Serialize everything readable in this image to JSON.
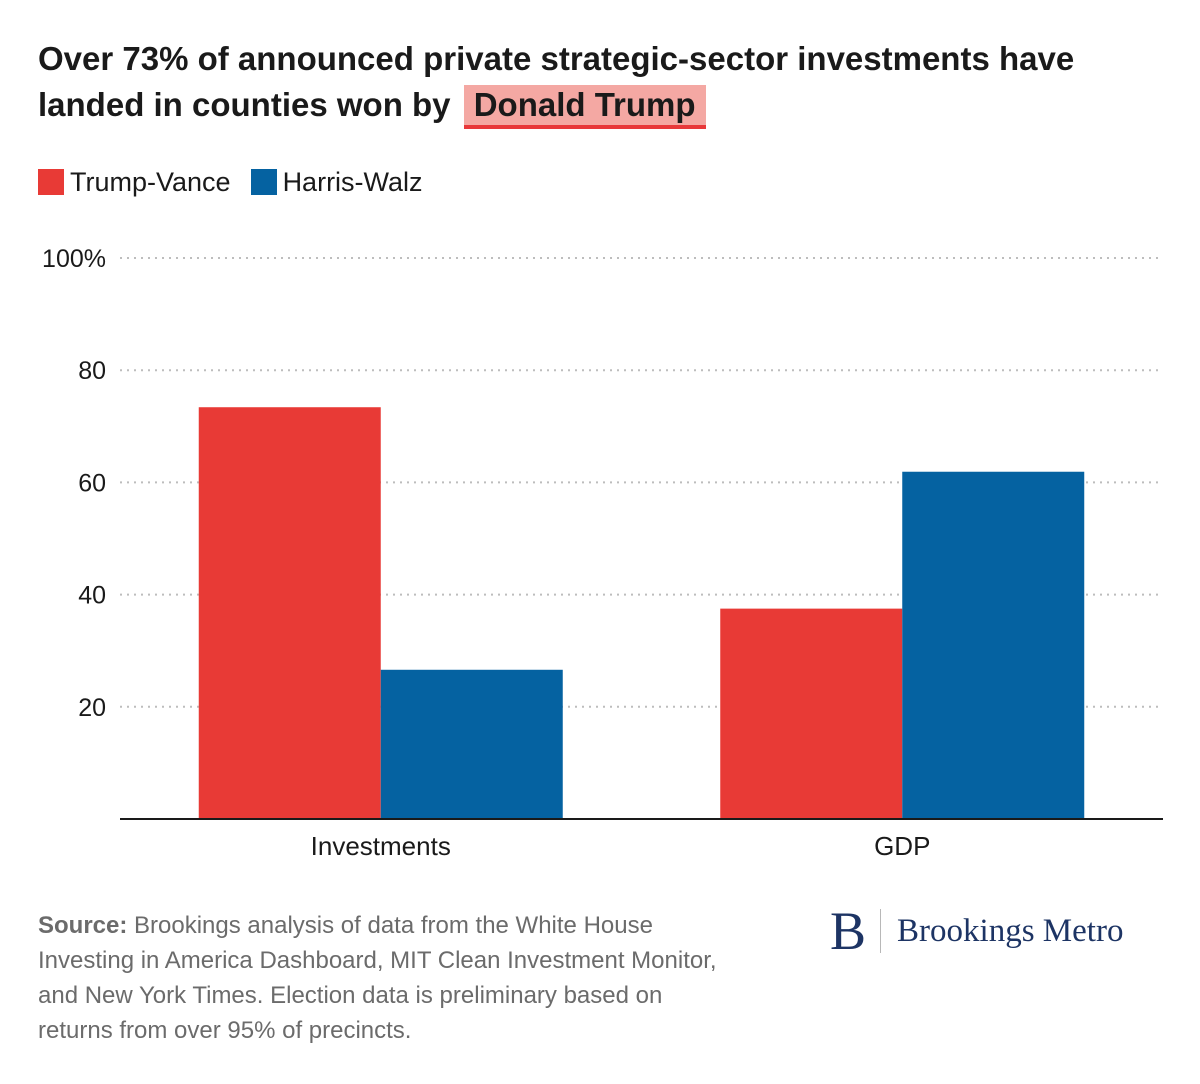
{
  "header": {
    "title_main": "Over 73% of announced private strategic-sector investments have landed in counties won by",
    "title_highlight": "Donald Trump"
  },
  "legend": [
    {
      "label": "Trump-Vance",
      "color": "#e83a36"
    },
    {
      "label": "Harris-Walz",
      "color": "#0562a1"
    }
  ],
  "chart_data": {
    "type": "bar",
    "title": "Over 73% of announced private strategic-sector investments have landed in counties won by Donald Trump",
    "xlabel": "",
    "ylabel": "",
    "categories": [
      "Investments",
      "GDP"
    ],
    "series": [
      {
        "name": "Trump-Vance",
        "values": [
          73.4,
          37.5
        ],
        "color": "#e83a36"
      },
      {
        "name": "Harris-Walz",
        "values": [
          26.6,
          61.9
        ],
        "color": "#0562a1"
      }
    ],
    "ylim": [
      0,
      100
    ],
    "yticks": [
      {
        "value": 20,
        "label": "20"
      },
      {
        "value": 40,
        "label": "40"
      },
      {
        "value": 60,
        "label": "60"
      },
      {
        "value": 80,
        "label": "80"
      },
      {
        "value": 100,
        "label": "100%"
      }
    ],
    "grid": true,
    "legend_position": "top-left"
  },
  "footer": {
    "source_label": "Source:",
    "source_text": "Brookings analysis of data from the White House Investing in America Dashboard, MIT Clean Investment Monitor, and New York Times. Election data is preliminary based on returns from over 95% of precincts.",
    "logo_mark": "B",
    "logo_text": "Brookings Metro"
  }
}
